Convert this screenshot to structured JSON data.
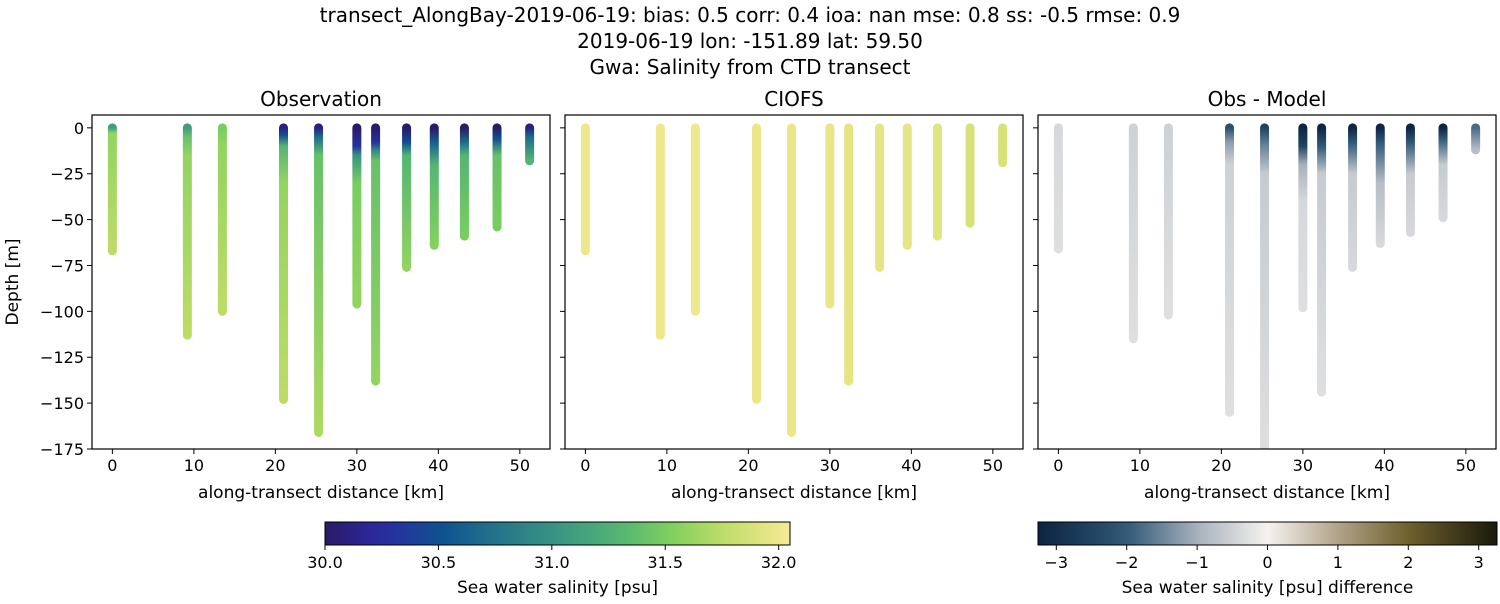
{
  "title_lines": [
    "transect_AlongBay-2019-06-19: bias: 0.5  corr: 0.4  ioa: nan  mse: 0.8  ss: -0.5  rmse: 0.9",
    "2019-06-19 lon: -151.89 lat: 59.50",
    "Gwa: Salinity from CTD transect"
  ],
  "chart_data": [
    {
      "type": "scatter",
      "title": "Observation",
      "xlabel": "along-transect distance [km]",
      "ylabel": "Depth [m]",
      "xlim": [
        -2.5,
        53.7
      ],
      "ylim": [
        -175,
        7
      ],
      "xticks": [
        0,
        10,
        20,
        30,
        40,
        50
      ],
      "yticks": [
        0,
        -25,
        -50,
        -75,
        -100,
        -125,
        -150,
        -175
      ],
      "colormap": "haline",
      "clim": [
        30.0,
        32.05
      ],
      "casts": [
        {
          "x": 0,
          "profile": [
            [
              0,
              31.1
            ],
            [
              3,
              31.6
            ],
            [
              67,
              31.75
            ]
          ]
        },
        {
          "x": 9.2,
          "profile": [
            [
              0,
              31.1
            ],
            [
              5,
              31.4
            ],
            [
              15,
              31.6
            ],
            [
              113,
              31.75
            ]
          ]
        },
        {
          "x": 13.5,
          "profile": [
            [
              0,
              31.5
            ],
            [
              10,
              31.6
            ],
            [
              100,
              31.75
            ]
          ]
        },
        {
          "x": 21.0,
          "profile": [
            [
              0,
              30.1
            ],
            [
              4,
              30.5
            ],
            [
              10,
              31.3
            ],
            [
              30,
              31.6
            ],
            [
              148,
              31.75
            ]
          ]
        },
        {
          "x": 25.3,
          "profile": [
            [
              0,
              30.1
            ],
            [
              5,
              30.7
            ],
            [
              15,
              31.4
            ],
            [
              166,
              31.7
            ]
          ]
        },
        {
          "x": 30.0,
          "profile": [
            [
              0,
              30.0
            ],
            [
              10,
              30.3
            ],
            [
              15,
              31.0
            ],
            [
              30,
              31.5
            ],
            [
              96,
              31.6
            ]
          ]
        },
        {
          "x": 32.3,
          "profile": [
            [
              0,
              30.0
            ],
            [
              8,
              30.3
            ],
            [
              12,
              30.9
            ],
            [
              18,
              31.4
            ],
            [
              138,
              31.6
            ]
          ]
        },
        {
          "x": 36.1,
          "profile": [
            [
              0,
              30.0
            ],
            [
              8,
              30.5
            ],
            [
              15,
              31.3
            ],
            [
              76,
              31.6
            ]
          ]
        },
        {
          "x": 39.5,
          "profile": [
            [
              0,
              30.0
            ],
            [
              8,
              30.6
            ],
            [
              20,
              31.3
            ],
            [
              64,
              31.55
            ]
          ]
        },
        {
          "x": 43.2,
          "profile": [
            [
              0,
              30.0
            ],
            [
              8,
              30.7
            ],
            [
              15,
              31.3
            ],
            [
              59,
              31.5
            ]
          ]
        },
        {
          "x": 47.2,
          "profile": [
            [
              0,
              30.0
            ],
            [
              6,
              30.5
            ],
            [
              15,
              31.4
            ],
            [
              54,
              31.5
            ]
          ]
        },
        {
          "x": 51.2,
          "profile": [
            [
              0,
              30.1
            ],
            [
              5,
              30.7
            ],
            [
              18,
              31.3
            ]
          ]
        }
      ]
    },
    {
      "type": "scatter",
      "title": "CIOFS",
      "xlabel": "along-transect distance [km]",
      "xlim": [
        -2.5,
        53.7
      ],
      "ylim": [
        -175,
        7
      ],
      "xticks": [
        0,
        10,
        20,
        30,
        40,
        50
      ],
      "yticks": [
        0,
        -25,
        -50,
        -75,
        -100,
        -125,
        -150,
        -175
      ],
      "colormap": "haline",
      "clim": [
        30.0,
        32.05
      ],
      "casts": [
        {
          "x": 0,
          "profile": [
            [
              0,
              32.0
            ],
            [
              67,
              32.0
            ]
          ]
        },
        {
          "x": 9.2,
          "profile": [
            [
              0,
              32.0
            ],
            [
              113,
              32.0
            ]
          ]
        },
        {
          "x": 13.5,
          "profile": [
            [
              0,
              32.0
            ],
            [
              100,
              32.0
            ]
          ]
        },
        {
          "x": 21.0,
          "profile": [
            [
              0,
              31.98
            ],
            [
              148,
              31.98
            ]
          ]
        },
        {
          "x": 25.3,
          "profile": [
            [
              0,
              31.98
            ],
            [
              166,
              31.98
            ]
          ]
        },
        {
          "x": 30.0,
          "profile": [
            [
              0,
              31.97
            ],
            [
              96,
              31.97
            ]
          ]
        },
        {
          "x": 32.3,
          "profile": [
            [
              0,
              31.95
            ],
            [
              138,
              31.95
            ]
          ]
        },
        {
          "x": 36.1,
          "profile": [
            [
              0,
              31.95
            ],
            [
              76,
              31.95
            ]
          ]
        },
        {
          "x": 39.5,
          "profile": [
            [
              0,
              31.95
            ],
            [
              64,
              31.95
            ]
          ]
        },
        {
          "x": 43.2,
          "profile": [
            [
              0,
              31.93
            ],
            [
              59,
              31.93
            ]
          ]
        },
        {
          "x": 47.2,
          "profile": [
            [
              0,
              31.88
            ],
            [
              52,
              31.88
            ]
          ]
        },
        {
          "x": 51.2,
          "profile": [
            [
              0,
              31.88
            ],
            [
              19,
              31.88
            ]
          ]
        }
      ]
    },
    {
      "type": "scatter",
      "title": "Obs - Model",
      "xlabel": "along-transect distance [km]",
      "xlim": [
        -2.5,
        53.7
      ],
      "ylim": [
        -175,
        7
      ],
      "xticks": [
        0,
        10,
        20,
        30,
        40,
        50
      ],
      "yticks": [
        0,
        -25,
        -50,
        -75,
        -100,
        -125,
        -150,
        -175
      ],
      "colormap": "diff",
      "clim": [
        -3.26,
        3.26
      ],
      "casts": [
        {
          "x": 0,
          "profile": [
            [
              0,
              -0.4
            ],
            [
              66,
              -0.3
            ]
          ]
        },
        {
          "x": 9.2,
          "profile": [
            [
              0,
              -0.5
            ],
            [
              115,
              -0.3
            ]
          ]
        },
        {
          "x": 13.5,
          "profile": [
            [
              0,
              -0.5
            ],
            [
              102,
              -0.3
            ]
          ]
        },
        {
          "x": 21.0,
          "profile": [
            [
              0,
              -2.2
            ],
            [
              8,
              -1.2
            ],
            [
              20,
              -0.5
            ],
            [
              155,
              -0.3
            ]
          ]
        },
        {
          "x": 25.3,
          "profile": [
            [
              0,
              -2.5
            ],
            [
              10,
              -1.5
            ],
            [
              25,
              -0.6
            ],
            [
              180,
              -0.3
            ]
          ]
        },
        {
          "x": 30.0,
          "profile": [
            [
              0,
              -3.2
            ],
            [
              10,
              -2.5
            ],
            [
              20,
              -1.0
            ],
            [
              40,
              -0.4
            ],
            [
              98,
              -0.3
            ]
          ]
        },
        {
          "x": 32.3,
          "profile": [
            [
              0,
              -3.2
            ],
            [
              10,
              -2.0
            ],
            [
              25,
              -0.6
            ],
            [
              144,
              -0.3
            ]
          ]
        },
        {
          "x": 36.1,
          "profile": [
            [
              0,
              -3.2
            ],
            [
              8,
              -2.0
            ],
            [
              25,
              -0.6
            ],
            [
              76,
              -0.4
            ]
          ]
        },
        {
          "x": 39.5,
          "profile": [
            [
              0,
              -3.2
            ],
            [
              8,
              -2.0
            ],
            [
              30,
              -0.8
            ],
            [
              63,
              -0.4
            ]
          ]
        },
        {
          "x": 43.2,
          "profile": [
            [
              0,
              -3.2
            ],
            [
              8,
              -2.0
            ],
            [
              25,
              -0.6
            ],
            [
              57,
              -0.4
            ]
          ]
        },
        {
          "x": 47.2,
          "profile": [
            [
              0,
              -3.2
            ],
            [
              6,
              -2.0
            ],
            [
              20,
              -0.6
            ],
            [
              49,
              -0.4
            ]
          ]
        },
        {
          "x": 51.2,
          "profile": [
            [
              0,
              -1.8
            ],
            [
              12,
              -0.8
            ]
          ]
        }
      ]
    }
  ],
  "colorbars": [
    {
      "label": "Sea water salinity [psu]",
      "ticks": [
        30.0,
        30.5,
        31.0,
        31.5,
        32.0
      ],
      "tick_labels": [
        "30.0",
        "30.5",
        "31.0",
        "31.5",
        "32.0"
      ],
      "range": [
        30.0,
        32.05
      ]
    },
    {
      "label": "Sea water salinity [psu] difference",
      "ticks": [
        -3,
        -2,
        -1,
        0,
        1,
        2,
        3
      ],
      "tick_labels": [
        "−3",
        "−2",
        "−1",
        "0",
        "1",
        "2",
        "3"
      ],
      "range": [
        -3.26,
        3.26
      ]
    }
  ],
  "colormaps": {
    "haline": [
      [
        0,
        "#291b66"
      ],
      [
        0.12,
        "#2b2aa3"
      ],
      [
        0.25,
        "#0f5191"
      ],
      [
        0.37,
        "#22758a"
      ],
      [
        0.5,
        "#3a9582"
      ],
      [
        0.62,
        "#4fb276"
      ],
      [
        0.74,
        "#7ccf5e"
      ],
      [
        0.86,
        "#c1dd68"
      ],
      [
        1,
        "#f7ea94"
      ]
    ],
    "diff": [
      [
        0,
        "#0c2442"
      ],
      [
        0.19,
        "#2e5777"
      ],
      [
        0.35,
        "#a9b3bd"
      ],
      [
        0.5,
        "#f5f2ef"
      ],
      [
        0.65,
        "#b2a58a"
      ],
      [
        0.81,
        "#6e5f2a"
      ],
      [
        1,
        "#1a1a0c"
      ]
    ]
  }
}
